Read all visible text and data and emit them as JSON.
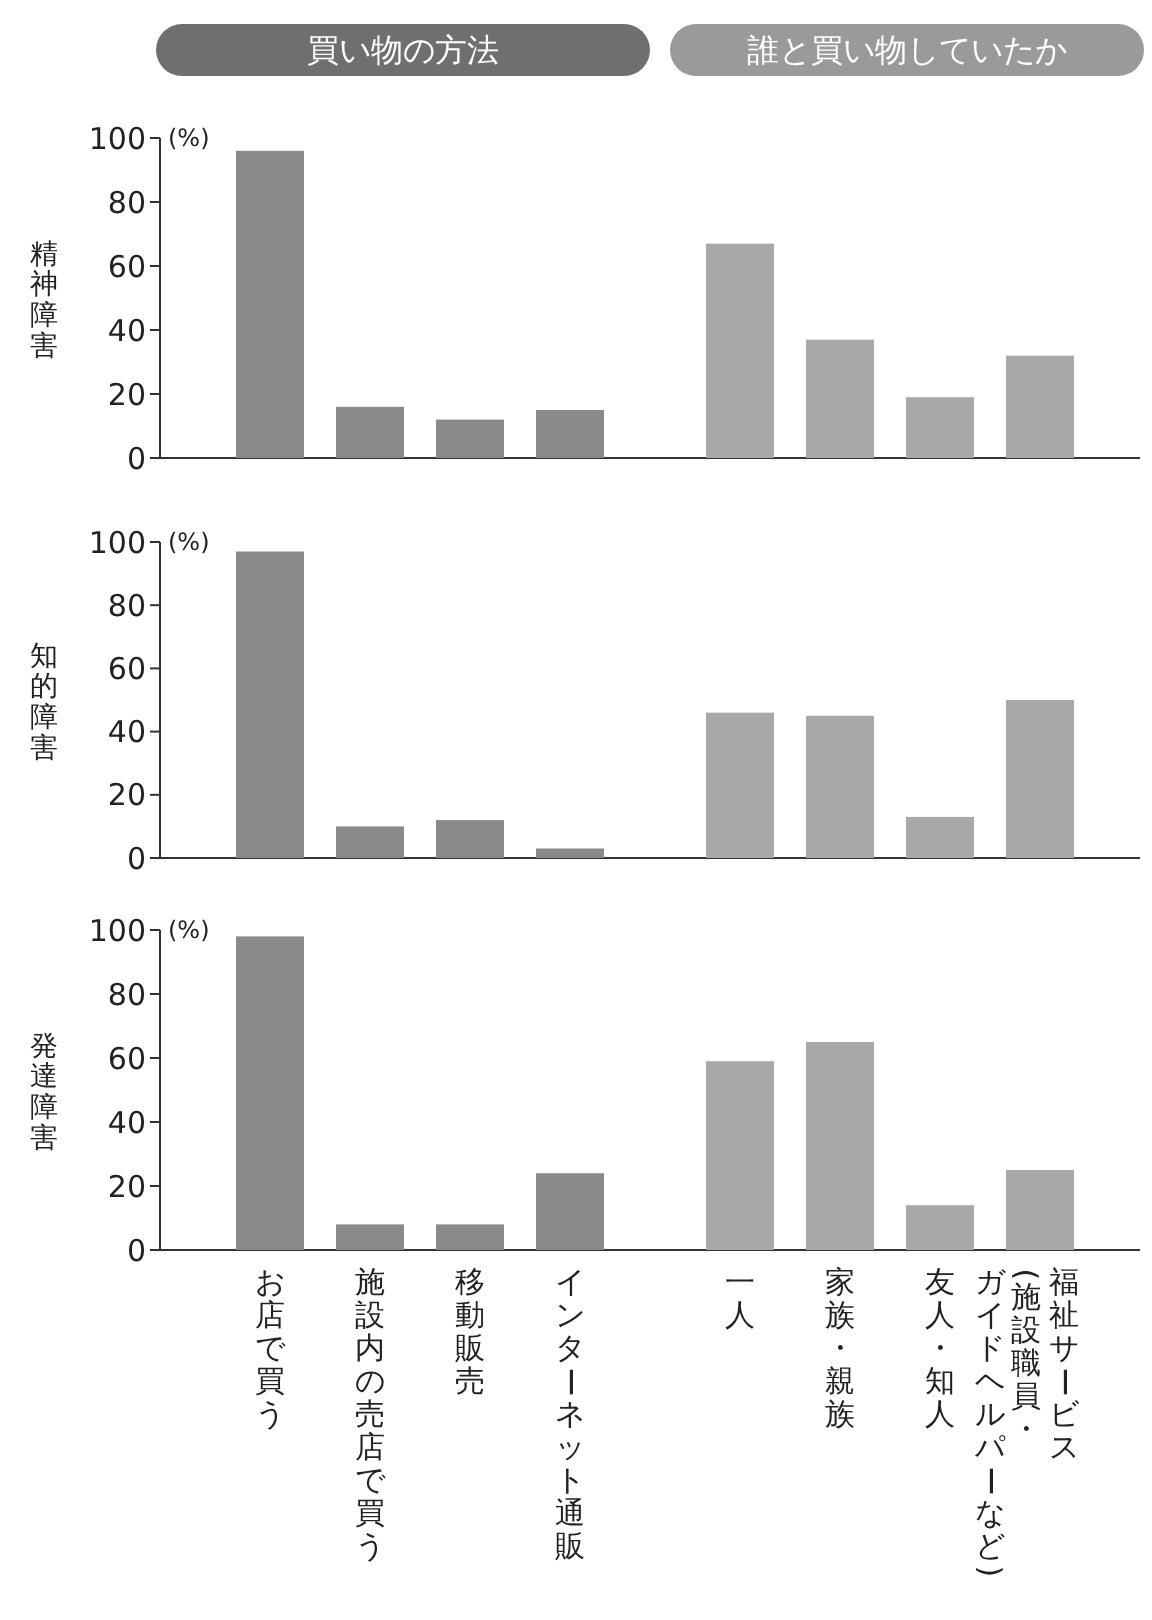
{
  "chart_data": [
    {
      "type": "bar",
      "ylabel": "精神障害",
      "categories": [
        null,
        null,
        null,
        null,
        null,
        null,
        null,
        null
      ],
      "values": [
        96,
        16,
        12,
        15,
        67,
        37,
        19,
        32
      ],
      "colors": [
        "#8a8a8a",
        "#8a8a8a",
        "#8a8a8a",
        "#8a8a8a",
        "#a9a9a9",
        "#a9a9a9",
        "#a9a9a9",
        "#a9a9a9"
      ],
      "ylim": [
        0,
        100
      ],
      "yticks": [
        0,
        20,
        40,
        60,
        80,
        100
      ],
      "annotations": [
        "(%)",
        "買い物の方法",
        "誰と買い物していたか"
      ]
    },
    {
      "type": "bar",
      "ylabel": "知的障害",
      "categories": [
        null,
        null,
        null,
        null,
        null,
        null,
        null,
        null
      ],
      "values": [
        97,
        10,
        12,
        3,
        46,
        45,
        13,
        50
      ],
      "colors": [
        "#8a8a8a",
        "#8a8a8a",
        "#8a8a8a",
        "#8a8a8a",
        "#a9a9a9",
        "#a9a9a9",
        "#a9a9a9",
        "#a9a9a9"
      ],
      "ylim": [
        0,
        100
      ],
      "yticks": [
        0,
        20,
        40,
        60,
        80,
        100
      ],
      "annotations": [
        "(%)"
      ]
    },
    {
      "type": "bar",
      "ylabel": "発達障害",
      "categories": [
        "お店で買う",
        "施設内の売店で買う",
        "移動販売",
        "インターネット通販",
        "一人",
        "家族・親族",
        "友人・知人",
        "福祉サービス(施設職員・ガイドヘルパーなど)"
      ],
      "values": [
        98,
        8,
        8,
        24,
        59,
        65,
        14,
        25
      ],
      "colors": [
        "#8a8a8a",
        "#8a8a8a",
        "#8a8a8a",
        "#8a8a8a",
        "#a9a9a9",
        "#a9a9a9",
        "#a9a9a9",
        "#a9a9a9"
      ],
      "ylim": [
        0,
        100
      ],
      "yticks": [
        0,
        20,
        40,
        60,
        80,
        100
      ],
      "annotations": [
        "(%)"
      ]
    }
  ]
}
